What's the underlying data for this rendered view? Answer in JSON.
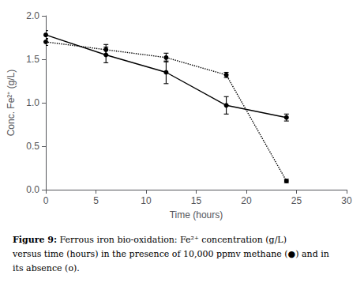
{
  "chart_data": {
    "type": "line",
    "x_label": "Time (hours)",
    "y_label": "Conc. Fe²⁺ (g/L)",
    "annotations": [
      "Figure 9: Ferrous iron bio-oxidation: Fe²⁺ concentration (g/L)",
      "versus time (hours) in the presence of 10,000 ppmv methane (●) and in",
      "its absence (o)."
    ],
    "series": [
      {
        "x": [
          0,
          6,
          12,
          18,
          24
        ],
        "values": [
          1.78,
          1.55,
          1.35,
          0.97,
          0.83
        ],
        "yerr": [
          0.05,
          0.09,
          0.13,
          0.1,
          0.04
        ],
        "color": "black",
        "marker": "circle",
        "line_style": "solid"
      },
      {
        "x": [
          0,
          6,
          12,
          18,
          24
        ],
        "values": [
          1.7,
          1.61,
          1.52,
          1.32,
          0.1
        ],
        "yerr": [
          0.04,
          0.06,
          0.05,
          0.03,
          0.02
        ],
        "color": "black",
        "marker": "circle",
        "line_style": "dotted"
      }
    ],
    "xlim": [
      0,
      30
    ],
    "xticks": [
      0,
      5,
      10,
      15,
      20,
      25,
      30
    ],
    "ylim": [
      0,
      2
    ],
    "yticks": [
      {
        "value": 0,
        "label": "0.0"
      },
      0.5,
      {
        "value": 1,
        "label": "1.0"
      },
      1.5,
      {
        "value": 2,
        "label": "2.0"
      }
    ],
    "grid": false
  }
}
